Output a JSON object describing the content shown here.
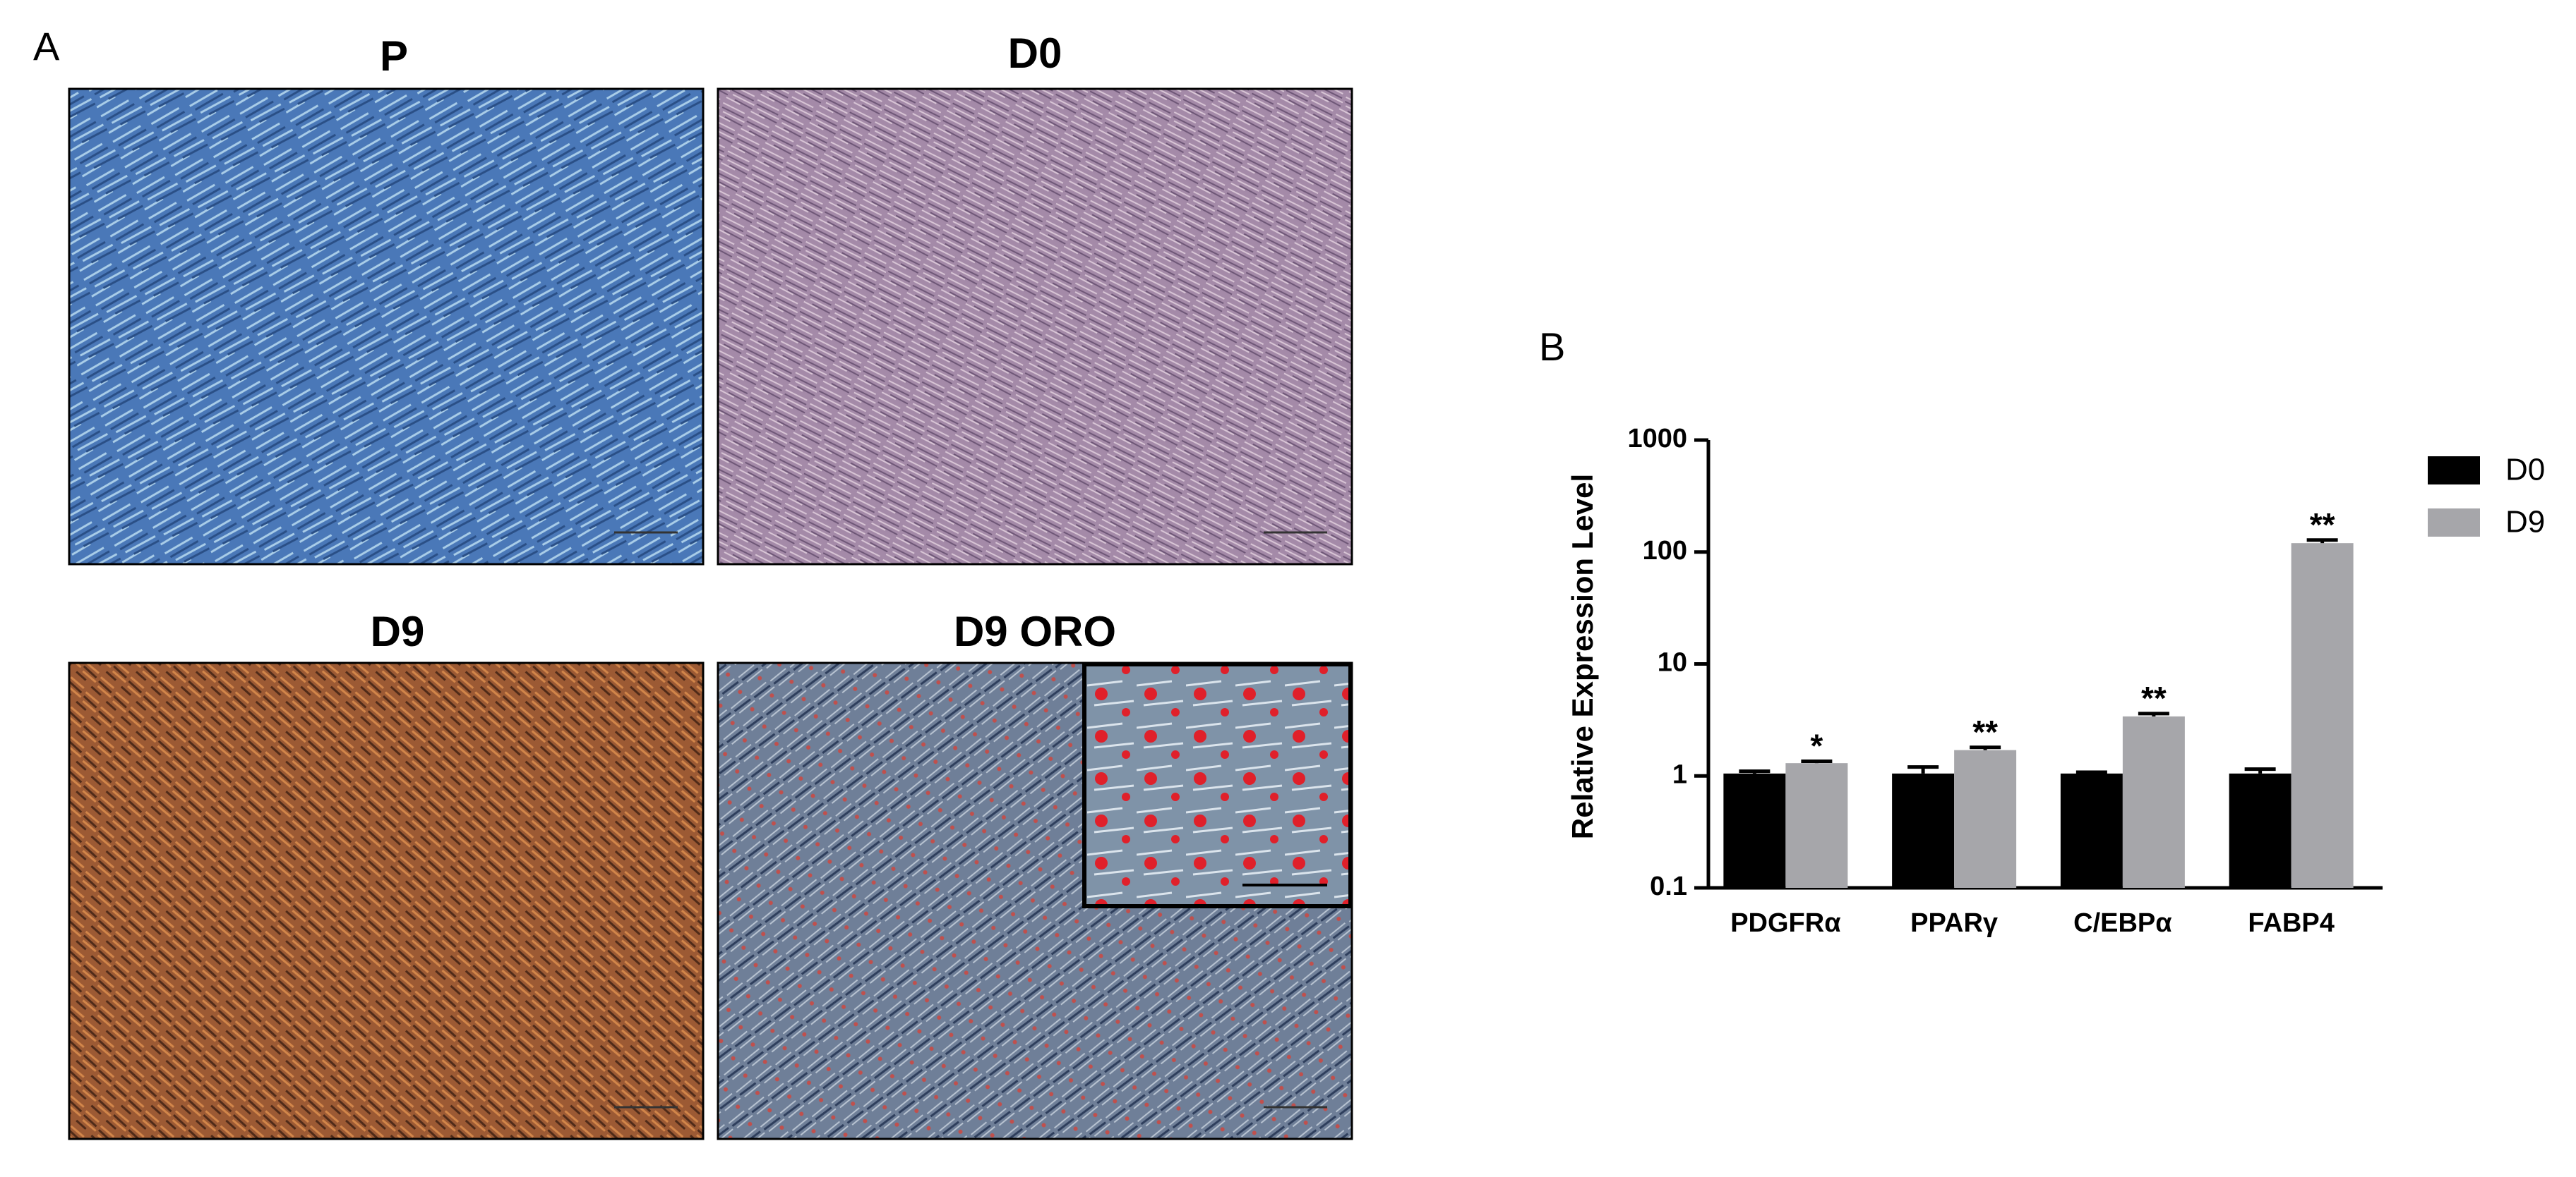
{
  "panel_a": {
    "label": "A",
    "images": [
      {
        "title": "P"
      },
      {
        "title": "D0"
      },
      {
        "title": "D9"
      },
      {
        "title": "D9 ORO"
      }
    ]
  },
  "chart_data": {
    "type": "bar",
    "panel_label": "B",
    "y_label": "Relative Expression Level",
    "categories": [
      "PDGFRα",
      "PPARγ",
      "C/EBPα",
      "FABP4"
    ],
    "series": [
      {
        "name": "D0",
        "color": "#000000",
        "values": [
          1.05,
          1.05,
          1.05,
          1.05
        ],
        "errors": [
          0.05,
          0.15,
          0.03,
          0.1
        ]
      },
      {
        "name": "D9",
        "color": "#a6a6aa",
        "values": [
          1.3,
          1.7,
          3.4,
          120
        ],
        "errors": [
          0.05,
          0.1,
          0.2,
          8
        ]
      }
    ],
    "significance": [
      "*",
      "**",
      "**",
      "**"
    ],
    "log_scale": true,
    "ylim": [
      0.1,
      1000
    ],
    "yticks": [
      0.1,
      1,
      10,
      100,
      1000
    ],
    "legend": "right"
  }
}
